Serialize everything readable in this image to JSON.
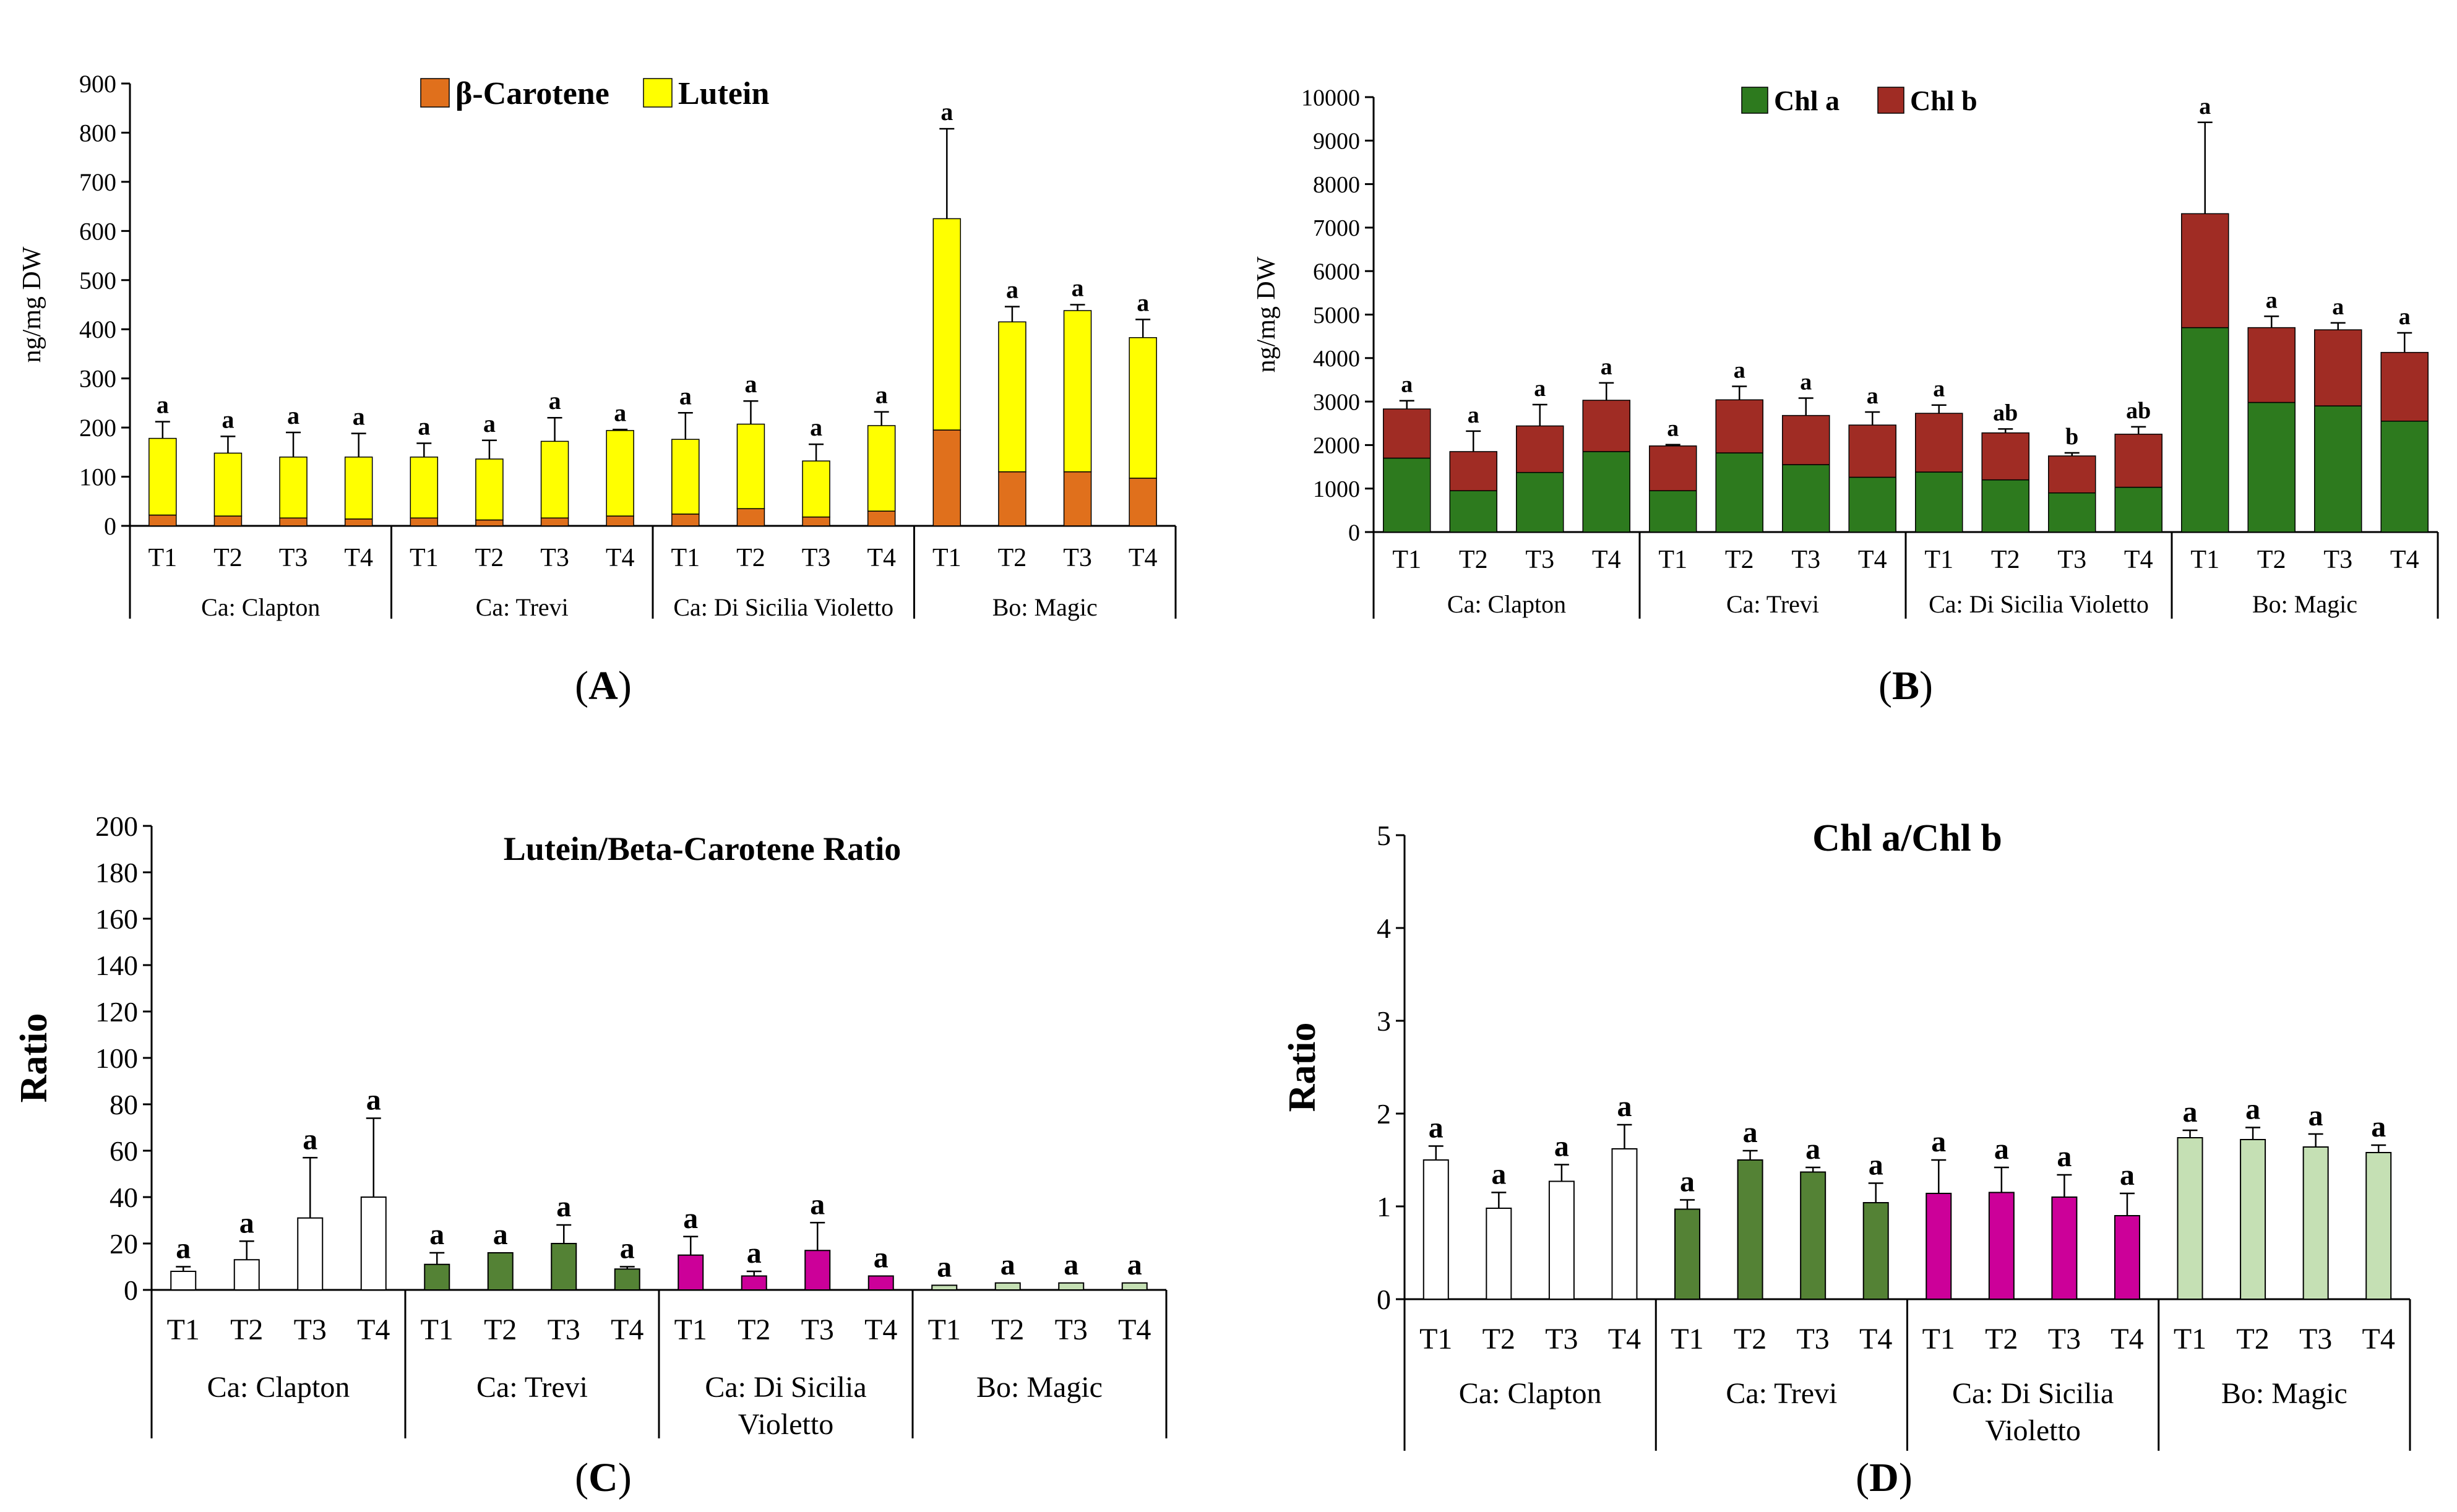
{
  "panels": [
    {
      "id": "A",
      "letter": "A",
      "title": "",
      "ylabel": "ng/mg DW",
      "ylabel_bold": false,
      "ylim": [
        0,
        900
      ],
      "yticks": [
        0,
        100,
        200,
        300,
        400,
        500,
        600,
        700,
        800,
        900
      ],
      "stacked": true,
      "legend": [
        "β-Carotene",
        "Lutein"
      ],
      "legend_colors": [
        "#e0701c",
        "#ffff00"
      ],
      "error_on": "top"
    },
    {
      "id": "B",
      "letter": "B",
      "title": "",
      "ylabel": "ng/mg DW",
      "ylabel_bold": false,
      "ylim": [
        0,
        10000
      ],
      "yticks": [
        0,
        1000,
        2000,
        3000,
        4000,
        5000,
        6000,
        7000,
        8000,
        9000,
        10000
      ],
      "stacked": true,
      "legend": [
        "Chl a",
        "Chl b"
      ],
      "legend_colors": [
        "#2d7a1e",
        "#a02c24"
      ],
      "error_on": "top"
    },
    {
      "id": "C",
      "letter": "C",
      "title": "Lutein/Beta-Carotene Ratio",
      "ylabel": "Ratio",
      "ylabel_bold": true,
      "ylim": [
        0,
        200
      ],
      "yticks": [
        0,
        20,
        40,
        60,
        80,
        100,
        120,
        140,
        160,
        180,
        200
      ],
      "stacked": false,
      "legend": [],
      "legend_colors": [],
      "error_on": "top"
    },
    {
      "id": "D",
      "letter": "D",
      "title": "Chl a/Chl b",
      "ylabel": "Ratio",
      "ylabel_bold": true,
      "ylim": [
        0,
        5
      ],
      "yticks": [
        0,
        1,
        2,
        3,
        4,
        5
      ],
      "stacked": false,
      "legend": [],
      "legend_colors": [],
      "error_on": "top"
    }
  ],
  "group_labels_short": [
    "Ca: Clapton",
    "Ca: Trevi",
    "Ca: Di Sicilia Violetto",
    "Bo: Magic"
  ],
  "group_labels_wrapped": [
    [
      "Ca: Clapton"
    ],
    [
      "Ca: Trevi"
    ],
    [
      "Ca: Di Sicilia",
      "Violetto"
    ],
    [
      "Bo: Magic"
    ]
  ],
  "treatments": [
    "T1",
    "T2",
    "T3",
    "T4"
  ],
  "group_colors_C": [
    "#ffffff",
    "#548235",
    "#cc0099",
    "#c5e0b4"
  ],
  "chart_data": [
    {
      "type": "bar",
      "panel": "A",
      "groups": [
        "Ca: Clapton",
        "Ca: Trevi",
        "Ca: Di Sicilia Violetto",
        "Bo: Magic"
      ],
      "categories": [
        "T1",
        "T2",
        "T3",
        "T4",
        "T1",
        "T2",
        "T3",
        "T4",
        "T1",
        "T2",
        "T3",
        "T4",
        "T1",
        "T2",
        "T3",
        "T4"
      ],
      "series": [
        {
          "name": "β-Carotene",
          "values": [
            22,
            20,
            16,
            14,
            16,
            12,
            16,
            20,
            24,
            35,
            18,
            30,
            195,
            110,
            110,
            97
          ]
        },
        {
          "name": "Lutein",
          "values": [
            156,
            128,
            124,
            126,
            124,
            124,
            156,
            174,
            152,
            172,
            114,
            174,
            430,
            305,
            328,
            286
          ]
        }
      ],
      "totals": [
        178,
        148,
        140,
        140,
        140,
        136,
        172,
        194,
        176,
        207,
        132,
        204,
        625,
        415,
        438,
        383
      ],
      "error_top": [
        212,
        182,
        190,
        188,
        168,
        174,
        220,
        196,
        230,
        254,
        166,
        232,
        808,
        446,
        450,
        420
      ],
      "sig_letters": [
        "a",
        "a",
        "a",
        "a",
        "a",
        "a",
        "a",
        "a",
        "a",
        "a",
        "a",
        "a",
        "a",
        "a",
        "a",
        "a"
      ],
      "ylabel": "ng/mg DW",
      "ylim": [
        0,
        900
      ]
    },
    {
      "type": "bar",
      "panel": "B",
      "groups": [
        "Ca: Clapton",
        "Ca: Trevi",
        "Ca: Di Sicilia Violetto",
        "Bo: Magic"
      ],
      "categories": [
        "T1",
        "T2",
        "T3",
        "T4",
        "T1",
        "T2",
        "T3",
        "T4",
        "T1",
        "T2",
        "T3",
        "T4",
        "T1",
        "T2",
        "T3",
        "T4"
      ],
      "series": [
        {
          "name": "Chl a",
          "values": [
            1700,
            950,
            1370,
            1850,
            950,
            1820,
            1550,
            1260,
            1380,
            1200,
            900,
            1030,
            4700,
            2980,
            2900,
            2550
          ]
        },
        {
          "name": "Chl b",
          "values": [
            1130,
            900,
            1070,
            1180,
            1030,
            1220,
            1130,
            1200,
            1350,
            1080,
            850,
            1220,
            2620,
            1720,
            1750,
            1580
          ]
        }
      ],
      "totals": [
        2830,
        1850,
        2440,
        3030,
        1980,
        3040,
        2680,
        2460,
        2730,
        2280,
        1750,
        2250,
        7320,
        4700,
        4650,
        4130
      ],
      "error_top": [
        3020,
        2320,
        2930,
        3430,
        2010,
        3350,
        3080,
        2760,
        2920,
        2370,
        1820,
        2420,
        9420,
        4960,
        4810,
        4580
      ],
      "sig_letters": [
        "a",
        "a",
        "a",
        "a",
        "a",
        "a",
        "a",
        "a",
        "a",
        "ab",
        "b",
        "ab",
        "a",
        "a",
        "a",
        "a"
      ],
      "ylabel": "ng/mg DW",
      "ylim": [
        0,
        10000
      ]
    },
    {
      "type": "bar",
      "panel": "C",
      "title": "Lutein/Beta-Carotene Ratio",
      "groups": [
        "Ca: Clapton",
        "Ca: Trevi",
        "Ca: Di Sicilia Violetto",
        "Bo: Magic"
      ],
      "categories": [
        "T1",
        "T2",
        "T3",
        "T4",
        "T1",
        "T2",
        "T3",
        "T4",
        "T1",
        "T2",
        "T3",
        "T4",
        "T1",
        "T2",
        "T3",
        "T4"
      ],
      "values": [
        8,
        13,
        31,
        40,
        11,
        16,
        20,
        9,
        15,
        6,
        17,
        6,
        2,
        3,
        3,
        3
      ],
      "error_top": [
        10,
        21,
        57,
        74,
        16,
        16,
        28,
        10,
        23,
        8,
        29,
        6,
        2,
        3,
        3,
        3
      ],
      "sig_letters": [
        "a",
        "a",
        "a",
        "a",
        "a",
        "a",
        "a",
        "a",
        "a",
        "a",
        "a",
        "a",
        "a",
        "a",
        "a",
        "a"
      ],
      "ylabel": "Ratio",
      "ylim": [
        0,
        200
      ]
    },
    {
      "type": "bar",
      "panel": "D",
      "title": "Chl a/Chl b",
      "groups": [
        "Ca: Clapton",
        "Ca: Trevi",
        "Ca: Di Sicilia Violetto",
        "Bo: Magic"
      ],
      "categories": [
        "T1",
        "T2",
        "T3",
        "T4",
        "T1",
        "T2",
        "T3",
        "T4",
        "T1",
        "T2",
        "T3",
        "T4",
        "T1",
        "T2",
        "T3",
        "T4"
      ],
      "values": [
        1.5,
        0.98,
        1.27,
        1.62,
        0.97,
        1.5,
        1.37,
        1.04,
        1.14,
        1.15,
        1.1,
        0.9,
        1.74,
        1.72,
        1.64,
        1.58
      ],
      "error_top": [
        1.65,
        1.15,
        1.45,
        1.88,
        1.07,
        1.6,
        1.42,
        1.25,
        1.5,
        1.42,
        1.34,
        1.14,
        1.82,
        1.85,
        1.78,
        1.66
      ],
      "sig_letters": [
        "a",
        "a",
        "a",
        "a",
        "a",
        "a",
        "a",
        "a",
        "a",
        "a",
        "a",
        "a",
        "a",
        "a",
        "a",
        "a"
      ],
      "ylabel": "Ratio",
      "ylim": [
        0,
        5
      ]
    }
  ]
}
